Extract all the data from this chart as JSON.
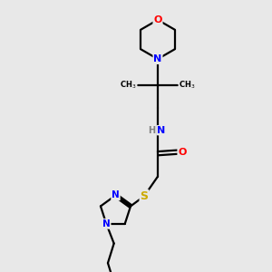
{
  "bg_color": "#e8e8e8",
  "atom_colors": {
    "C": "#000000",
    "N": "#0000ff",
    "O": "#ff0000",
    "S": "#ccaa00",
    "H": "#808080"
  },
  "bond_color": "#000000",
  "bond_width": 1.6
}
